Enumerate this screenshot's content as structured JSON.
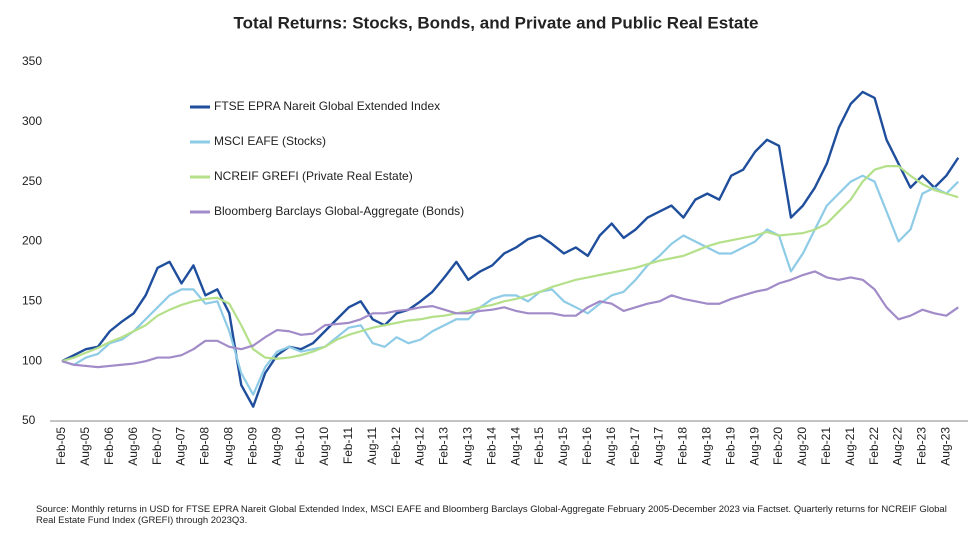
{
  "chart_data": {
    "type": "line",
    "title": "Total Returns: Stocks, Bonds, and Private and Public Real Estate",
    "note": "Source: Monthly returns in USD for FTSE EPRA Nareit Global Extended Index, MSCI EAFE and Bloomberg Barclays Global-Aggregate February 2005-December 2023 via Factset. Quarterly returns for NCREIF Global Real Estate Fund Index (GREFI) through 2023Q3.",
    "categories": [
      "Feb-05",
      null,
      "Aug-05",
      null,
      "Feb-06",
      null,
      "Aug-06",
      null,
      "Feb-07",
      null,
      "Aug-07",
      null,
      "Feb-08",
      null,
      "Aug-08",
      null,
      "Feb-09",
      null,
      "Aug-09",
      null,
      "Feb-10",
      null,
      "Aug-10",
      null,
      "Feb-11",
      null,
      "Aug-11",
      null,
      "Feb-12",
      null,
      "Aug-12",
      null,
      "Feb-13",
      null,
      "Aug-13",
      null,
      "Feb-14",
      null,
      "Aug-14",
      null,
      "Feb-15",
      null,
      "Aug-15",
      null,
      "Feb-16",
      null,
      "Aug-16",
      null,
      "Feb-17",
      null,
      "Aug-17",
      null,
      "Feb-18",
      null,
      "Aug-18",
      null,
      "Feb-19",
      null,
      "Aug-19",
      null,
      "Feb-20",
      null,
      "Aug-20",
      null,
      "Feb-21",
      null,
      "Aug-21",
      null,
      "Feb-22",
      null,
      "Aug-22",
      null,
      "Feb-23",
      null,
      "Aug-23",
      null
    ],
    "series": [
      {
        "name": "FTSE EPRA Nareit Global Extended Index",
        "color": "#1f4e9c",
        "width": 2.4,
        "values": [
          100,
          105,
          110,
          112,
          125,
          133,
          140,
          155,
          178,
          183,
          165,
          180,
          155,
          160,
          140,
          80,
          62,
          90,
          105,
          112,
          110,
          115,
          125,
          135,
          145,
          150,
          135,
          130,
          140,
          143,
          150,
          158,
          170,
          183,
          168,
          175,
          180,
          190,
          195,
          202,
          205,
          198,
          190,
          195,
          188,
          205,
          215,
          203,
          210,
          220,
          225,
          230,
          220,
          235,
          240,
          235,
          255,
          260,
          275,
          285,
          280,
          220,
          230,
          245,
          265,
          295,
          315,
          325,
          320,
          285,
          265,
          245,
          255,
          245,
          255,
          270
        ]
      },
      {
        "name": "MSCI EAFE (Stocks)",
        "color": "#8ecbe6",
        "width": 2.2,
        "values": [
          100,
          97,
          103,
          106,
          115,
          118,
          125,
          135,
          145,
          155,
          160,
          160,
          148,
          150,
          125,
          90,
          72,
          95,
          108,
          112,
          108,
          110,
          112,
          120,
          128,
          130,
          115,
          112,
          120,
          115,
          118,
          125,
          130,
          135,
          135,
          145,
          152,
          155,
          155,
          150,
          158,
          160,
          150,
          145,
          140,
          148,
          155,
          158,
          168,
          180,
          188,
          198,
          205,
          200,
          195,
          190,
          190,
          195,
          200,
          210,
          205,
          175,
          190,
          210,
          230,
          240,
          250,
          255,
          250,
          225,
          200,
          210,
          240,
          245,
          240,
          250
        ]
      },
      {
        "name": "NCREIF GREFI (Private Real Estate)",
        "color": "#b5e08a",
        "width": 2.2,
        "values": [
          100,
          103,
          107,
          111,
          116,
          120,
          125,
          130,
          138,
          143,
          147,
          150,
          152,
          153,
          148,
          130,
          110,
          103,
          102,
          103,
          105,
          108,
          112,
          118,
          122,
          125,
          128,
          130,
          132,
          134,
          135,
          137,
          138,
          140,
          142,
          145,
          147,
          150,
          152,
          155,
          158,
          162,
          165,
          168,
          170,
          172,
          174,
          176,
          178,
          181,
          184,
          186,
          188,
          192,
          196,
          199,
          201,
          203,
          205,
          208,
          205,
          206,
          207,
          210,
          215,
          225,
          235,
          250,
          260,
          263,
          263,
          255,
          248,
          243,
          240,
          237
        ]
      },
      {
        "name": "Bloomberg Barclays Global-Aggregate (Bonds)",
        "color": "#a18bc8",
        "width": 2.2,
        "values": [
          100,
          97,
          96,
          95,
          96,
          97,
          98,
          100,
          103,
          103,
          105,
          110,
          117,
          117,
          112,
          110,
          113,
          120,
          126,
          125,
          122,
          123,
          130,
          131,
          132,
          135,
          140,
          140,
          142,
          143,
          145,
          146,
          143,
          140,
          140,
          142,
          143,
          145,
          142,
          140,
          140,
          140,
          138,
          138,
          145,
          150,
          148,
          142,
          145,
          148,
          150,
          155,
          152,
          150,
          148,
          148,
          152,
          155,
          158,
          160,
          165,
          168,
          172,
          175,
          170,
          168,
          170,
          168,
          160,
          145,
          135,
          138,
          143,
          140,
          138,
          145
        ]
      }
    ],
    "ylim": [
      50,
      350
    ],
    "yticks": [
      50,
      100,
      150,
      200,
      250,
      300,
      350
    ],
    "grid": false
  }
}
